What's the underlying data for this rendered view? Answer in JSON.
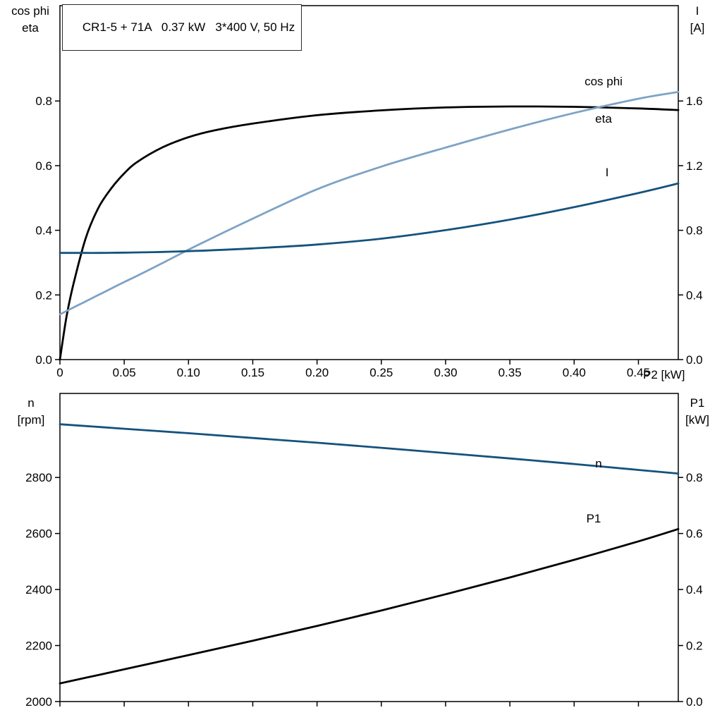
{
  "colors": {
    "black": "#000000",
    "light_blue": "#7da3c5",
    "dark_blue": "#15527d",
    "frame": "#000000",
    "background": "#ffffff"
  },
  "chart_data": [
    {
      "id": "motor-electrical",
      "type": "line",
      "title": "CR1-5 + 71A   0.37 kW   3*400 V, 50 Hz",
      "xlabel": "P2 [kW]",
      "grid": false,
      "legend": "inline-labels",
      "x_range": [
        0,
        0.481
      ],
      "left_axis": {
        "title_lines": [
          "cos phi",
          "eta"
        ],
        "range": [
          0,
          1.095
        ],
        "tick_values": [
          0,
          0.2,
          0.4,
          0.6,
          0.8
        ],
        "tick_labels": [
          "0.0",
          "0.2",
          "0.4",
          "0.6",
          "0.8"
        ]
      },
      "right_axis": {
        "title_lines": [
          "I",
          "[A]"
        ],
        "range": [
          0,
          2.19
        ],
        "tick_values": [
          0,
          0.4,
          0.8,
          1.2,
          1.6
        ],
        "tick_labels": [
          "0.0",
          "0.4",
          "0.8",
          "1.2",
          "1.6"
        ]
      },
      "x_axis": {
        "tick_values": [
          0,
          0.05,
          0.1,
          0.15,
          0.2,
          0.25,
          0.3,
          0.35,
          0.4,
          0.45
        ],
        "tick_labels": [
          "0",
          "0.05",
          "0.10",
          "0.15",
          "0.20",
          "0.25",
          "0.30",
          "0.35",
          "0.40",
          "0.45"
        ]
      },
      "x": [
        0,
        0.005,
        0.01,
        0.02,
        0.03,
        0.04,
        0.05,
        0.06,
        0.08,
        0.1,
        0.12,
        0.15,
        0.2,
        0.25,
        0.3,
        0.35,
        0.4,
        0.45,
        0.481
      ],
      "series": [
        {
          "name": "eta",
          "axis": "left",
          "color": "#000000",
          "values": [
            0,
            0.13,
            0.225,
            0.375,
            0.47,
            0.53,
            0.576,
            0.611,
            0.657,
            0.688,
            0.709,
            0.73,
            0.756,
            0.771,
            0.78,
            0.783,
            0.782,
            0.777,
            0.772
          ]
        },
        {
          "name": "cos phi",
          "axis": "left",
          "color": "#7da3c5",
          "values": [
            0.14,
            0.15,
            0.16,
            0.18,
            0.2,
            0.22,
            0.24,
            0.259,
            0.299,
            0.34,
            0.379,
            0.436,
            0.527,
            0.597,
            0.656,
            0.712,
            0.763,
            0.807,
            0.828
          ]
        },
        {
          "name": "I",
          "axis": "right",
          "color": "#15527d",
          "values": [
            0.66,
            0.66,
            0.66,
            0.66,
            0.66,
            0.661,
            0.662,
            0.663,
            0.666,
            0.671,
            0.677,
            0.688,
            0.712,
            0.748,
            0.801,
            0.866,
            0.943,
            1.031,
            1.09
          ]
        }
      ]
    },
    {
      "id": "motor-mechanical",
      "type": "line",
      "title": "",
      "xlabel": "",
      "grid": false,
      "legend": "inline-labels",
      "x_range": [
        0,
        0.481
      ],
      "left_axis": {
        "title_lines": [
          "n",
          "[rpm]"
        ],
        "range": [
          2000,
          3100
        ],
        "tick_values": [
          2000,
          2200,
          2400,
          2600,
          2800
        ],
        "tick_labels": [
          "2000",
          "2200",
          "2400",
          "2600",
          "2800"
        ]
      },
      "right_axis": {
        "title_lines": [
          "P1",
          "[kW]"
        ],
        "range": [
          0,
          1.1
        ],
        "tick_values": [
          0,
          0.2,
          0.4,
          0.6,
          0.8
        ],
        "tick_labels": [
          "0.0",
          "0.2",
          "0.4",
          "0.6",
          "0.8"
        ]
      },
      "x_axis": {
        "tick_values": [
          0,
          0.05,
          0.1,
          0.15,
          0.2,
          0.25,
          0.3,
          0.35,
          0.4,
          0.45
        ],
        "tick_labels": []
      },
      "x": [
        0,
        0.05,
        0.1,
        0.15,
        0.2,
        0.25,
        0.3,
        0.35,
        0.4,
        0.45,
        0.481
      ],
      "series": [
        {
          "name": "n",
          "axis": "left",
          "color": "#15527d",
          "values": [
            2990,
            2974,
            2958,
            2941,
            2924,
            2906,
            2887,
            2868,
            2848,
            2827,
            2814
          ]
        },
        {
          "name": "P1",
          "axis": "right",
          "color": "#000000",
          "values": [
            0.065,
            0.115,
            0.166,
            0.217,
            0.27,
            0.325,
            0.383,
            0.443,
            0.506,
            0.572,
            0.616
          ]
        }
      ]
    }
  ]
}
